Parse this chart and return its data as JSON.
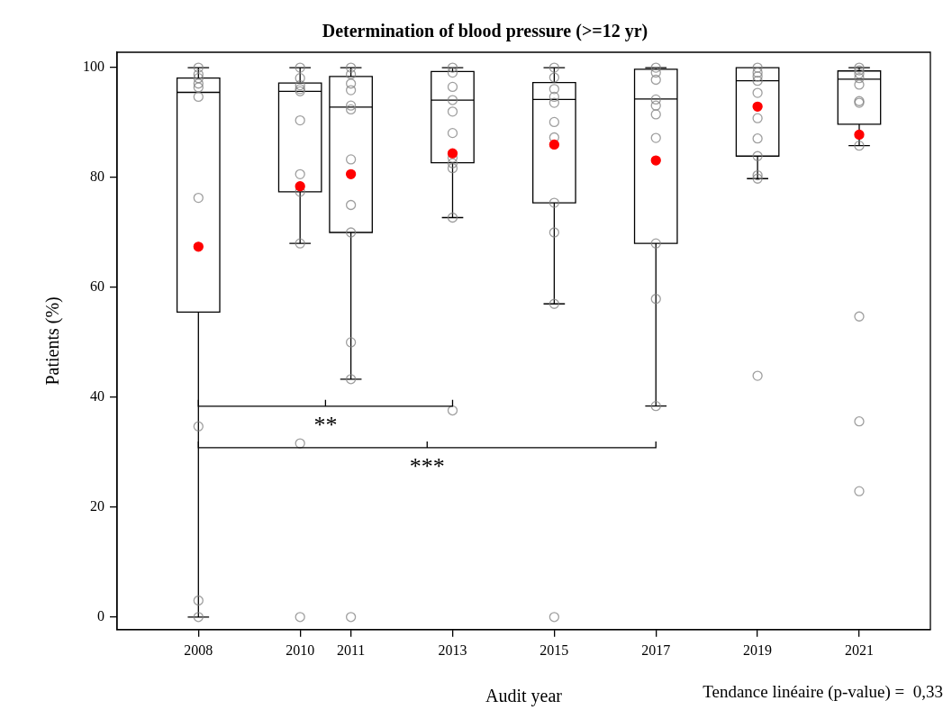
{
  "chart_data": {
    "type": "box",
    "title": "Determination of blood pressure (>=12 yr)",
    "xlabel": "Audit year",
    "ylabel": "Patients (%)",
    "xlim": [
      2006.4,
      2022.4
    ],
    "xticks": [
      2008,
      2010,
      2011,
      2013,
      2015,
      2017,
      2019,
      2021
    ],
    "ylim": [
      -2.3,
      102.8
    ],
    "yticks": [
      0,
      20,
      40,
      60,
      80,
      100
    ],
    "annotations": [
      "**",
      "***",
      "Tendance linéaire (p-value) =  0,33"
    ],
    "series": [
      {
        "color": "#000000",
        "x": [
          2008,
          2010,
          2011,
          2013,
          2015,
          2017,
          2019,
          2021
        ],
        "boxes": [
          {
            "low": 0,
            "q1": 55.5,
            "median": 95.5,
            "q3": 98.1,
            "high": 100
          },
          {
            "low": 68,
            "q1": 77.4,
            "median": 95.7,
            "q3": 97.2,
            "high": 100
          },
          {
            "low": 43.3,
            "q1": 70,
            "median": 92.8,
            "q3": 98.4,
            "high": 100
          },
          {
            "low": 72.7,
            "q1": 82.7,
            "median": 94.1,
            "q3": 99.3,
            "high": 100
          },
          {
            "low": 57,
            "q1": 75.4,
            "median": 94.2,
            "q3": 97.3,
            "high": 100
          },
          {
            "low": 38.4,
            "q1": 68,
            "median": 94.3,
            "q3": 99.7,
            "high": 100
          },
          {
            "low": 79.8,
            "q1": 83.9,
            "median": 97.6,
            "q3": 100,
            "high": 100
          },
          {
            "low": 85.8,
            "q1": 89.7,
            "median": 97.9,
            "q3": 99.4,
            "high": 100
          }
        ]
      },
      {
        "type": "scatter",
        "color": "#808080",
        "marker": "circle",
        "x": [
          2008,
          2008,
          2008,
          2008,
          2008,
          2008,
          2008,
          2008,
          2008,
          2008,
          2010,
          2010,
          2010,
          2010,
          2010,
          2010,
          2010,
          2010,
          2010,
          2010,
          2010,
          2011,
          2011,
          2011,
          2011,
          2011,
          2011,
          2011,
          2011,
          2011,
          2011,
          2011,
          2011,
          2013,
          2013,
          2013,
          2013,
          2013,
          2013,
          2013,
          2013,
          2013,
          2013,
          2013,
          2015,
          2015,
          2015,
          2015,
          2015,
          2015,
          2015,
          2015,
          2015,
          2015,
          2015,
          2017,
          2017,
          2017,
          2017,
          2017,
          2017,
          2017,
          2017,
          2017,
          2017,
          2019,
          2019,
          2019,
          2019,
          2019,
          2019,
          2019,
          2019,
          2019,
          2019,
          2019,
          2021,
          2021,
          2021,
          2021,
          2021,
          2021,
          2021,
          2021,
          2021,
          2021,
          2021
        ],
        "values": [
          100,
          98.8,
          98.1,
          97.1,
          96.4,
          94.7,
          76.3,
          34.7,
          3,
          0,
          100,
          98.1,
          96.8,
          96.1,
          95.7,
          90.4,
          80.6,
          77.4,
          68,
          31.6,
          0,
          100,
          98.8,
          97.1,
          95.9,
          93.1,
          92.4,
          83.3,
          75,
          70,
          50,
          43.3,
          0,
          100,
          99.1,
          96.5,
          94.1,
          92,
          88.1,
          83.6,
          82.6,
          81.7,
          72.7,
          37.6,
          100,
          98.2,
          96.1,
          94.7,
          93.6,
          90.1,
          87.3,
          75.4,
          70,
          57,
          0,
          100,
          99.1,
          97.8,
          94.2,
          93.1,
          91.5,
          87.2,
          68,
          57.9,
          38.4,
          100,
          99.1,
          98.4,
          97.6,
          95.4,
          90.8,
          87.1,
          83.9,
          80.4,
          79.8,
          43.9,
          100,
          99.5,
          98.9,
          98.1,
          96.9,
          93.9,
          93.6,
          85.8,
          54.7,
          35.6,
          22.9
        ]
      },
      {
        "type": "scatter",
        "color": "#ff0000",
        "marker": "circle",
        "x": [
          2008,
          2010,
          2011,
          2013,
          2015,
          2017,
          2019,
          2021
        ],
        "values": [
          67.4,
          78.4,
          80.6,
          84.4,
          86,
          83.1,
          92.9,
          87.8
        ]
      }
    ]
  }
}
